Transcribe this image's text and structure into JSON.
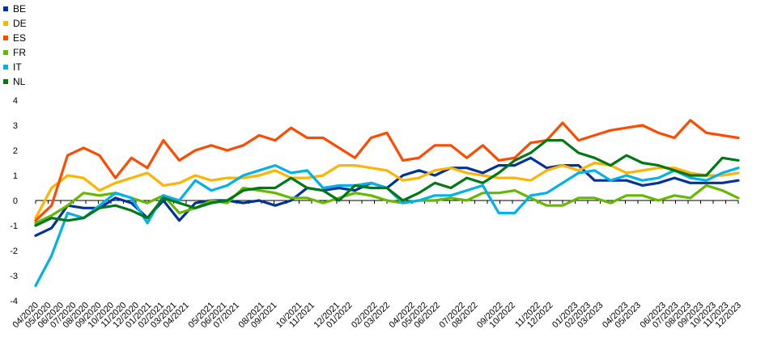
{
  "chart_data": {
    "type": "line",
    "title": "",
    "xlabel": "",
    "ylabel": "",
    "ylim": [
      -4,
      4
    ],
    "yticks": [
      4,
      3,
      2,
      1,
      0,
      -1,
      -2,
      -3,
      -4
    ],
    "ytick_labels": [
      "4",
      "3",
      "2",
      "1",
      "0",
      "-1",
      "-2",
      "-3",
      "-4"
    ],
    "grid": false,
    "legend_position": "top-left",
    "categories": [
      "04/2020",
      "05/2020",
      "06/2020",
      "07/2020",
      "08/2020",
      "09/2020",
      "10/2020",
      "11/2020",
      "12/2020",
      "01/2021",
      "02/2021",
      "03/2021",
      "04/2021",
      "05/2021",
      "06/2021",
      "07/2021",
      "08/2021",
      "09/2021",
      "10/2021",
      "11/2021",
      "12/2021",
      "01/2022",
      "02/2022",
      "03/2022",
      "04/2022",
      "05/2022",
      "06/2022",
      "07/2022",
      "08/2022",
      "09/2022",
      "10/2022",
      "11/2022",
      "12/2022",
      "01/2023",
      "02/2023",
      "03/2023",
      "04/2023",
      "05/2023",
      "06/2023",
      "07/2023",
      "08/2023",
      "09/2023",
      "10/2023",
      "11/2023",
      "12/2023"
    ],
    "x_slots": 57,
    "x_labels": [
      {
        "slot": 0,
        "text": "04/2020"
      },
      {
        "slot": 1,
        "text": "05/2020"
      },
      {
        "slot": 2,
        "text": "06/2020"
      },
      {
        "slot": 3,
        "text": "07/2020"
      },
      {
        "slot": 4,
        "text": "08/2020"
      },
      {
        "slot": 5,
        "text": "09/2020"
      },
      {
        "slot": 6,
        "text": "10/2020"
      },
      {
        "slot": 7,
        "text": "11/2020"
      },
      {
        "slot": 8,
        "text": "12/2020"
      },
      {
        "slot": 9,
        "text": "01/2021"
      },
      {
        "slot": 10,
        "text": "02/2021"
      },
      {
        "slot": 11,
        "text": "03/2021"
      },
      {
        "slot": 12,
        "text": "04/2021"
      },
      {
        "slot": 14,
        "text": "05/2021"
      },
      {
        "slot": 15,
        "text": "06/2021"
      },
      {
        "slot": 16,
        "text": "07/2021"
      },
      {
        "slot": 18,
        "text": "08/2021"
      },
      {
        "slot": 19,
        "text": "09/2021"
      },
      {
        "slot": 21,
        "text": "10/2021"
      },
      {
        "slot": 22,
        "text": "11/2021"
      },
      {
        "slot": 24,
        "text": "12/2021"
      },
      {
        "slot": 25,
        "text": "01/2022"
      },
      {
        "slot": 27,
        "text": "02/2022"
      },
      {
        "slot": 28,
        "text": "03/2022"
      },
      {
        "slot": 30,
        "text": "04/2022"
      },
      {
        "slot": 31,
        "text": "05/2022"
      },
      {
        "slot": 32,
        "text": "06/2022"
      },
      {
        "slot": 34,
        "text": "07/2022"
      },
      {
        "slot": 35,
        "text": "08/2022"
      },
      {
        "slot": 37,
        "text": "09/2022"
      },
      {
        "slot": 38,
        "text": "10/2022"
      },
      {
        "slot": 40,
        "text": "11/2022"
      },
      {
        "slot": 41,
        "text": "12/2022"
      },
      {
        "slot": 43,
        "text": "01/2023"
      },
      {
        "slot": 44,
        "text": "02/2023"
      },
      {
        "slot": 45,
        "text": "03/2023"
      },
      {
        "slot": 47,
        "text": "04/2023"
      },
      {
        "slot": 48,
        "text": "05/2023"
      },
      {
        "slot": 50,
        "text": "06/2023"
      },
      {
        "slot": 51,
        "text": "07/2023"
      },
      {
        "slot": 52,
        "text": "08/2023"
      },
      {
        "slot": 53,
        "text": "09/2023"
      },
      {
        "slot": 54,
        "text": "10/2023"
      },
      {
        "slot": 55,
        "text": "11/2023"
      },
      {
        "slot": 56,
        "text": "12/2023"
      }
    ],
    "series": [
      {
        "name": "BE",
        "color": "#003299",
        "values": [
          -1.4,
          -1.1,
          -0.2,
          -0.3,
          -0.3,
          0.1,
          -0.1,
          -0.7,
          0.0,
          -0.8,
          -0.1,
          0.0,
          0.0,
          -0.1,
          0.0,
          -0.2,
          0.0,
          0.5,
          0.4,
          0.5,
          0.4,
          0.7,
          0.5,
          1.0,
          1.2,
          1.0,
          1.3,
          1.3,
          1.1,
          1.4,
          1.4,
          1.7,
          1.3,
          1.4,
          1.4,
          0.8,
          0.8,
          0.8,
          0.6,
          0.7,
          0.9,
          0.7,
          0.7,
          0.7,
          0.8
        ]
      },
      {
        "name": "DE",
        "color": "#FFB400",
        "values": [
          -0.7,
          0.5,
          1.0,
          0.9,
          0.4,
          0.7,
          0.9,
          1.1,
          0.6,
          0.7,
          1.0,
          0.8,
          0.9,
          0.9,
          1.0,
          1.2,
          0.9,
          0.9,
          1.0,
          1.4,
          1.4,
          1.3,
          1.2,
          0.8,
          0.9,
          1.2,
          1.3,
          1.1,
          1.0,
          0.9,
          0.9,
          0.8,
          1.2,
          1.4,
          1.2,
          1.5,
          1.4,
          1.1,
          1.2,
          1.3,
          1.3,
          1.1,
          1.0,
          1.0,
          1.1
        ]
      },
      {
        "name": "ES",
        "color": "#FF4B00",
        "values": [
          -0.8,
          -0.2,
          1.8,
          2.1,
          1.8,
          0.9,
          1.7,
          1.3,
          2.4,
          1.6,
          2.0,
          2.2,
          2.0,
          2.2,
          2.6,
          2.4,
          2.9,
          2.5,
          2.5,
          2.1,
          1.7,
          2.5,
          2.7,
          1.6,
          1.7,
          2.2,
          2.2,
          1.7,
          2.2,
          1.6,
          1.7,
          2.3,
          2.4,
          3.1,
          2.4,
          2.6,
          2.8,
          2.9,
          3.0,
          2.7,
          2.5,
          3.2,
          2.7,
          2.6,
          2.5
        ]
      },
      {
        "name": "FR",
        "color": "#65B800",
        "values": [
          -0.9,
          -0.6,
          -0.2,
          0.3,
          0.2,
          0.3,
          0.1,
          -0.1,
          0.2,
          -0.5,
          -0.3,
          0.0,
          -0.1,
          0.5,
          0.4,
          0.3,
          0.1,
          0.1,
          -0.1,
          0.1,
          0.3,
          0.2,
          0.0,
          -0.1,
          0.0,
          0.0,
          0.1,
          0.0,
          0.3,
          0.3,
          0.4,
          0.1,
          -0.2,
          -0.2,
          0.1,
          0.1,
          -0.1,
          0.2,
          0.2,
          0.0,
          0.2,
          0.1,
          0.6,
          0.4,
          0.1
        ]
      },
      {
        "name": "IT",
        "color": "#00B1EA",
        "values": [
          -3.4,
          -2.2,
          -0.5,
          -0.7,
          -0.2,
          0.3,
          0.1,
          -0.9,
          0.2,
          0.0,
          0.8,
          0.4,
          0.6,
          1.0,
          1.2,
          1.4,
          1.1,
          1.2,
          0.5,
          0.6,
          0.6,
          0.7,
          0.5,
          -0.1,
          0.0,
          0.2,
          0.2,
          0.4,
          0.6,
          -0.5,
          -0.5,
          0.2,
          0.3,
          0.7,
          1.1,
          1.2,
          0.8,
          1.0,
          0.8,
          0.9,
          1.2,
          0.9,
          0.8,
          1.1,
          1.3
        ]
      },
      {
        "name": "NL",
        "color": "#007816",
        "values": [
          -1.0,
          -0.7,
          -0.8,
          -0.7,
          -0.3,
          -0.2,
          -0.4,
          -0.7,
          0.1,
          -0.1,
          -0.3,
          -0.1,
          0.0,
          0.4,
          0.5,
          0.5,
          0.9,
          0.5,
          0.4,
          0.0,
          0.6,
          0.5,
          0.5,
          0.0,
          0.3,
          0.7,
          0.5,
          0.9,
          0.7,
          1.1,
          1.6,
          1.9,
          2.4,
          2.4,
          1.9,
          1.7,
          1.4,
          1.8,
          1.5,
          1.4,
          1.2,
          1.0,
          1.0,
          1.7,
          1.6
        ]
      }
    ]
  }
}
